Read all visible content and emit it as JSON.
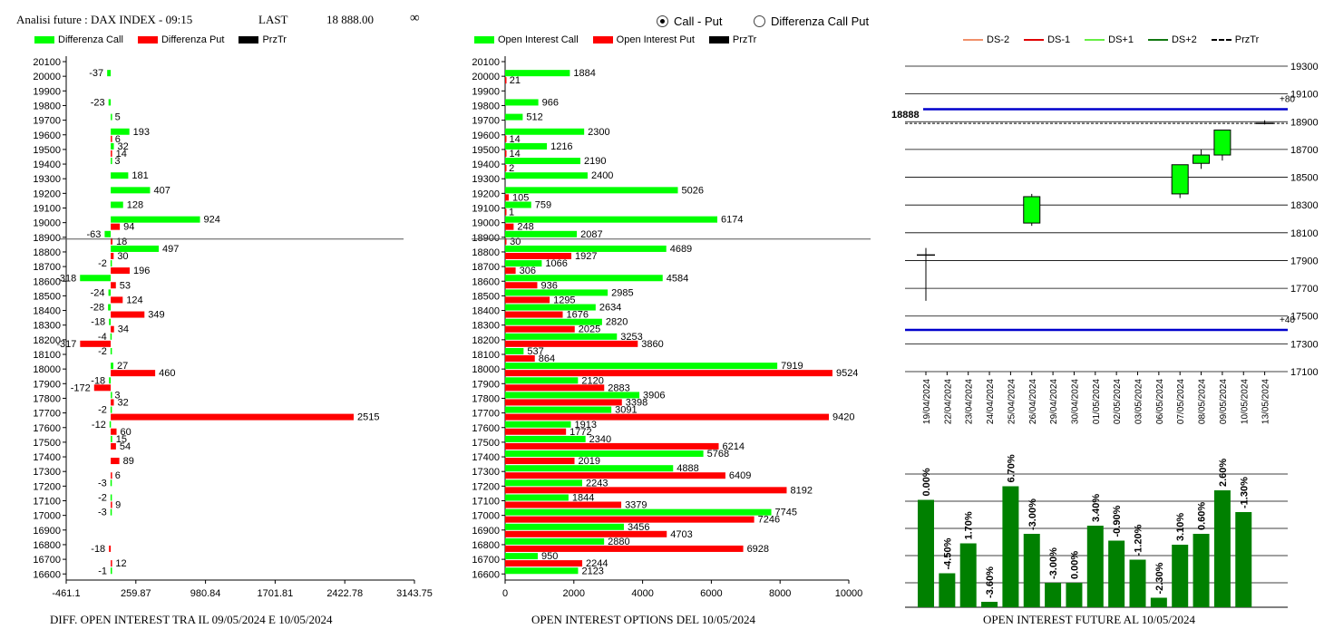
{
  "header": {
    "label": "Analisi future : DAX INDEX - 09:15",
    "last_label": "LAST",
    "last_value": "18 888.00",
    "infinity": "∞"
  },
  "view_options": [
    {
      "label": "Call - Put",
      "selected": true
    },
    {
      "label": "Differenza Call Put",
      "selected": false
    }
  ],
  "colors": {
    "green": "#00ff00",
    "red": "#ff0000",
    "dark_green": "#008000",
    "blue": "#0000cc"
  },
  "legend1": [
    "Differenza Call",
    "Differenza Put",
    "PrzTr"
  ],
  "legend2": [
    "Open Interest Call",
    "Open Interest Put",
    "PrzTr"
  ],
  "legend3": [
    "DS-2",
    "DS-1",
    "DS+1",
    "DS+2",
    "PrzTr"
  ],
  "footers": {
    "chart1": "DIFF. OPEN INTEREST TRA IL 09/05/2024 E 10/05/2024",
    "chart2": "OPEN INTEREST OPTIONS DEL 10/05/2024",
    "chart3": "OPEN INTEREST FUTURE AL 10/05/2024"
  },
  "chart_data": [
    {
      "type": "bar",
      "orientation": "horizontal",
      "strikes": [
        20100,
        20000,
        19900,
        19800,
        19700,
        19600,
        19500,
        19400,
        19300,
        19200,
        19100,
        19000,
        18900,
        18800,
        18700,
        18600,
        18500,
        18400,
        18300,
        18200,
        18100,
        18000,
        17900,
        17800,
        17700,
        17600,
        17500,
        17400,
        17300,
        17200,
        17100,
        17000,
        16900,
        16800,
        16700,
        16600
      ],
      "series": [
        {
          "name": "Differenza Call",
          "values": [
            null,
            -37,
            null,
            -23,
            5,
            193,
            32,
            3,
            181,
            407,
            128,
            924,
            -63,
            497,
            -2,
            -318,
            -24,
            -28,
            -18,
            -4,
            -2,
            27,
            -18,
            3,
            -2,
            -12,
            15,
            null,
            null,
            -3,
            -2,
            -3,
            null,
            null,
            null,
            -1
          ]
        },
        {
          "name": "Differenza Put",
          "values": [
            null,
            null,
            null,
            null,
            null,
            6,
            14,
            null,
            null,
            null,
            null,
            94,
            18,
            30,
            196,
            53,
            124,
            349,
            34,
            -317,
            null,
            460,
            -172,
            32,
            2515,
            60,
            54,
            89,
            6,
            null,
            9,
            null,
            null,
            -18,
            12,
            null
          ]
        }
      ],
      "price_strike": 18900,
      "xlim": [
        -461.1,
        3143.75
      ],
      "xticks": [
        "-461.1",
        "259.87",
        "980.84",
        "1701.81",
        "2422.78",
        "3143.75"
      ]
    },
    {
      "type": "bar",
      "orientation": "horizontal",
      "strikes": [
        20100,
        20000,
        19900,
        19800,
        19700,
        19600,
        19500,
        19400,
        19300,
        19200,
        19100,
        19000,
        18900,
        18800,
        18700,
        18600,
        18500,
        18400,
        18300,
        18200,
        18100,
        18000,
        17900,
        17800,
        17700,
        17600,
        17500,
        17400,
        17300,
        17200,
        17100,
        17000,
        16900,
        16800,
        16700,
        16600
      ],
      "series": [
        {
          "name": "Open Interest Call",
          "values": [
            null,
            1884,
            null,
            966,
            512,
            2300,
            1216,
            2190,
            2400,
            5026,
            759,
            6174,
            2087,
            4689,
            1066,
            4584,
            2985,
            2634,
            2820,
            3253,
            537,
            7919,
            2120,
            3906,
            3091,
            1913,
            2340,
            5768,
            4888,
            2243,
            1844,
            7745,
            3456,
            2880,
            950,
            2123
          ]
        },
        {
          "name": "Open Interest Put",
          "values": [
            null,
            21,
            null,
            null,
            null,
            14,
            14,
            2,
            null,
            105,
            1,
            248,
            30,
            1927,
            306,
            936,
            1295,
            1676,
            2025,
            3860,
            864,
            9524,
            2883,
            3398,
            9420,
            1772,
            6214,
            2019,
            6409,
            8192,
            3379,
            7246,
            4703,
            6928,
            2244,
            null
          ]
        }
      ],
      "price_strike": 18900,
      "xlim": [
        0,
        10000
      ],
      "xticks": [
        "0",
        "2000",
        "4000",
        "6000",
        "8000",
        "10000"
      ]
    },
    {
      "type": "candlestick",
      "dates": [
        "19/04/2024",
        "22/04/2024",
        "23/04/2024",
        "24/04/2024",
        "25/04/2024",
        "26/04/2024",
        "29/04/2024",
        "30/04/2024",
        "01/05/2024",
        "02/05/2024",
        "03/05/2024",
        "06/05/2024",
        "07/05/2024",
        "08/05/2024",
        "09/05/2024",
        "10/05/2024",
        "13/05/2024"
      ],
      "candles": [
        {
          "date": "19/04/2024",
          "open": 17940,
          "close": 17940,
          "high": 17990,
          "low": 17610
        },
        {
          "date": "26/04/2024",
          "open": 18170,
          "close": 18360,
          "high": 18380,
          "low": 18150
        },
        {
          "date": "07/05/2024",
          "open": 18380,
          "close": 18590,
          "high": 18590,
          "low": 18350
        },
        {
          "date": "08/05/2024",
          "open": 18600,
          "close": 18660,
          "high": 18700,
          "low": 18560
        },
        {
          "date": "09/05/2024",
          "open": 18660,
          "close": 18840,
          "high": 18840,
          "low": 18620
        },
        {
          "date": "13/05/2024",
          "open": 18888,
          "close": 18888,
          "high": 18910,
          "low": 18880
        }
      ],
      "last_price": 18888,
      "last_price_label": "18888",
      "upper_level": 18990,
      "upper_label": "+80",
      "lower_level": 17400,
      "lower_label": "+40",
      "ylim": [
        17100,
        19300
      ],
      "yticks": [
        "17100",
        "17300",
        "17500",
        "17700",
        "17900",
        "18100",
        "18300",
        "18500",
        "18700",
        "18900",
        "19100",
        "19300"
      ]
    },
    {
      "type": "bar",
      "categories": [
        "19/04/2024",
        "22/04/2024",
        "23/04/2024",
        "24/04/2024",
        "25/04/2024",
        "26/04/2024",
        "29/04/2024",
        "30/04/2024",
        "01/05/2024",
        "02/05/2024",
        "03/05/2024",
        "06/05/2024",
        "07/05/2024",
        "08/05/2024",
        "09/05/2024",
        "10/05/2024"
      ],
      "labels": [
        "0.00%",
        "-4.50%",
        "1.70%",
        "-3.60%",
        "6.70%",
        "-3.00%",
        "-3.00%",
        "0.00%",
        "3.40%",
        "-0.90%",
        "-1.20%",
        "-2.30%",
        "3.10%",
        "0.60%",
        "2.60%",
        "-1.30%"
      ],
      "values": [
        3.95,
        1.25,
        2.35,
        0.2,
        4.45,
        2.7,
        0.9,
        0.9,
        3.0,
        2.45,
        1.75,
        0.35,
        2.3,
        2.7,
        4.3,
        3.5
      ]
    }
  ]
}
